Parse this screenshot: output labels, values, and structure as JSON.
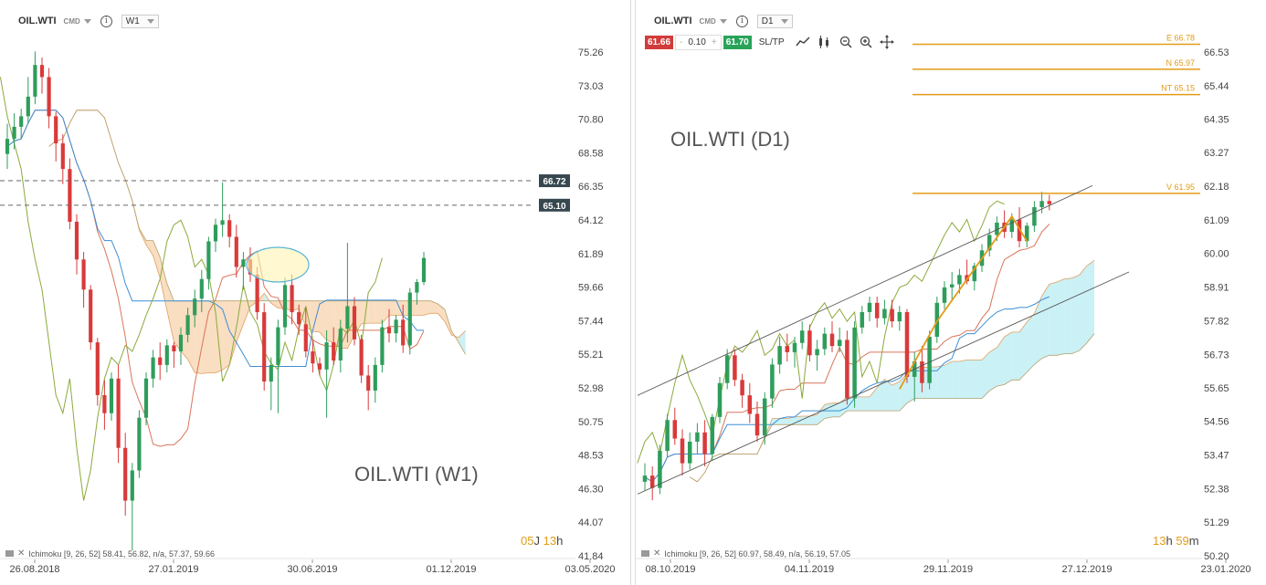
{
  "left": {
    "symbol": "OIL.WTI",
    "cmd": "CMD",
    "timeframe": "W1",
    "watermark": "OIL.WTI (W1)",
    "timer": {
      "a": "05",
      "b": "J",
      "c": "13",
      "d": "h"
    },
    "indicator": "Ichimoku [9, 26, 52] 58.41, 56.82, n/a, 57.37, 59.66",
    "levels": [
      {
        "label": "66.72",
        "value": 66.72
      },
      {
        "label": "65.10",
        "value": 65.1
      }
    ]
  },
  "right": {
    "symbol": "OIL.WTI",
    "cmd": "CMD",
    "timeframe": "D1",
    "watermark": "OIL.WTI (D1)",
    "sell_price": "61.66",
    "volume": "0.10",
    "minus": "-",
    "plus": "+",
    "buy_price": "61.70",
    "sltp": "SL/TP",
    "timer": {
      "a": "13",
      "b": "h",
      "c": "59",
      "d": "m"
    },
    "indicator": "Ichimoku [9, 26, 52] 60.97, 58.49, n/a, 56.19, 57.05",
    "fib_levels": [
      {
        "label": "E 66.78",
        "value": 66.78
      },
      {
        "label": "N 65.97",
        "value": 65.97
      },
      {
        "label": "NT 65.15",
        "value": 65.15
      },
      {
        "label": "V 61.95",
        "value": 61.95
      }
    ]
  },
  "chart_data": [
    {
      "type": "candlestick",
      "title": "OIL.WTI (W1)",
      "y_ticks": [
        "75.26",
        "73.03",
        "70.80",
        "68.58",
        "66.35",
        "64.12",
        "61.89",
        "59.66",
        "57.44",
        "55.21",
        "52.98",
        "50.75",
        "48.53",
        "46.30",
        "44.07",
        "41.84"
      ],
      "x_ticks": [
        "26.08.2018",
        "27.01.2019",
        "30.06.2019",
        "01.12.2019",
        "03.05.2020"
      ],
      "ylim": [
        41.84,
        75.26
      ],
      "candles": [
        [
          68.5,
          70.5,
          67.5,
          69.5
        ],
        [
          69.5,
          71.2,
          68.8,
          70.3
        ],
        [
          70.3,
          71.5,
          69.5,
          71.0
        ],
        [
          71.0,
          73.6,
          70.5,
          72.3
        ],
        [
          72.3,
          75.3,
          71.8,
          74.4
        ],
        [
          74.4,
          74.9,
          72.5,
          73.6
        ],
        [
          73.6,
          74.2,
          70.2,
          71.0
        ],
        [
          71.0,
          71.3,
          68.0,
          69.2
        ],
        [
          69.2,
          69.8,
          66.5,
          67.5
        ],
        [
          67.5,
          68.2,
          63.5,
          64.0
        ],
        [
          64.0,
          64.5,
          60.5,
          61.5
        ],
        [
          61.5,
          62.0,
          58.3,
          59.5
        ],
        [
          59.5,
          59.8,
          55.5,
          56.0
        ],
        [
          56.0,
          56.3,
          51.8,
          52.5
        ],
        [
          52.5,
          53.5,
          50.2,
          51.3
        ],
        [
          51.3,
          54.0,
          50.8,
          53.6
        ],
        [
          53.6,
          54.5,
          48.0,
          49.0
        ],
        [
          49.0,
          50.0,
          44.5,
          45.5
        ],
        [
          45.5,
          48.0,
          42.2,
          47.5
        ],
        [
          47.5,
          51.5,
          47.0,
          51.0
        ],
        [
          51.0,
          54.0,
          50.5,
          53.6
        ],
        [
          53.6,
          55.5,
          53.0,
          55.0
        ],
        [
          55.0,
          56.0,
          53.5,
          54.5
        ],
        [
          54.5,
          56.2,
          54.0,
          55.8
        ],
        [
          55.8,
          56.0,
          54.3,
          55.4
        ],
        [
          55.4,
          57.0,
          54.5,
          56.5
        ],
        [
          56.5,
          58.3,
          56.0,
          57.8
        ],
        [
          57.8,
          59.5,
          57.0,
          58.9
        ],
        [
          58.9,
          60.8,
          58.0,
          60.2
        ],
        [
          60.2,
          63.0,
          59.5,
          62.7
        ],
        [
          62.7,
          64.2,
          62.0,
          63.8
        ],
        [
          63.8,
          66.6,
          63.0,
          64.1
        ],
        [
          64.1,
          64.5,
          62.3,
          63.0
        ],
        [
          63.0,
          63.8,
          60.3,
          61.0
        ],
        [
          61.0,
          62.0,
          59.5,
          61.5
        ],
        [
          61.5,
          62.3,
          60.0,
          60.5
        ],
        [
          60.5,
          61.0,
          57.5,
          58.0
        ],
        [
          58.0,
          58.6,
          52.8,
          53.4
        ],
        [
          53.4,
          55.0,
          51.5,
          54.5
        ],
        [
          54.5,
          57.5,
          51.3,
          57.0
        ],
        [
          57.0,
          60.3,
          56.5,
          59.8
        ],
        [
          59.8,
          60.5,
          57.2,
          58.0
        ],
        [
          58.0,
          58.5,
          56.5,
          57.2
        ],
        [
          57.2,
          58.3,
          55.0,
          55.4
        ],
        [
          55.4,
          56.2,
          54.0,
          54.6
        ],
        [
          54.6,
          55.0,
          53.8,
          54.2
        ],
        [
          54.2,
          56.8,
          51.0,
          56.0
        ],
        [
          56.0,
          57.0,
          54.5,
          54.8
        ],
        [
          54.8,
          57.5,
          54.0,
          56.9
        ],
        [
          56.9,
          62.6,
          56.0,
          58.4
        ],
        [
          58.4,
          59.0,
          55.8,
          56.2
        ],
        [
          56.2,
          56.5,
          53.3,
          53.8
        ],
        [
          53.8,
          54.5,
          51.5,
          52.8
        ],
        [
          52.8,
          55.0,
          52.0,
          54.5
        ],
        [
          54.5,
          57.5,
          54.0,
          57.0
        ],
        [
          57.0,
          58.2,
          56.0,
          56.6
        ],
        [
          56.6,
          57.8,
          56.0,
          57.5
        ],
        [
          57.5,
          58.5,
          55.3,
          55.8
        ],
        [
          55.8,
          59.6,
          55.2,
          59.3
        ],
        [
          59.3,
          60.2,
          58.5,
          60.0
        ],
        [
          60.0,
          62.0,
          59.8,
          61.6
        ]
      ]
    },
    {
      "type": "candlestick",
      "title": "OIL.WTI (D1)",
      "y_ticks": [
        "66.53",
        "65.44",
        "64.35",
        "63.27",
        "62.18",
        "61.09",
        "60.00",
        "58.91",
        "57.82",
        "56.73",
        "55.65",
        "54.56",
        "53.47",
        "52.38",
        "51.29",
        "50.20"
      ],
      "x_ticks": [
        "08.10.2019",
        "04.11.2019",
        "29.11.2019",
        "27.12.2019",
        "23.01.2020"
      ],
      "ylim": [
        50.2,
        66.53
      ],
      "candles": [
        [
          52.6,
          53.2,
          52.3,
          52.8
        ],
        [
          52.8,
          53.1,
          52.0,
          52.4
        ],
        [
          52.4,
          53.8,
          52.2,
          53.6
        ],
        [
          53.6,
          54.8,
          53.4,
          54.6
        ],
        [
          54.6,
          55.0,
          53.8,
          54.0
        ],
        [
          54.0,
          54.3,
          52.8,
          53.2
        ],
        [
          53.2,
          54.2,
          53.0,
          53.9
        ],
        [
          53.9,
          54.5,
          53.5,
          54.2
        ],
        [
          54.2,
          54.6,
          53.1,
          53.5
        ],
        [
          53.5,
          54.8,
          53.3,
          54.7
        ],
        [
          54.7,
          56.0,
          54.5,
          55.8
        ],
        [
          55.8,
          56.9,
          55.6,
          56.7
        ],
        [
          56.7,
          56.9,
          55.7,
          55.9
        ],
        [
          55.9,
          56.1,
          55.0,
          55.4
        ],
        [
          55.4,
          55.8,
          54.5,
          54.8
        ],
        [
          54.8,
          55.2,
          53.9,
          54.1
        ],
        [
          54.1,
          55.5,
          53.8,
          55.3
        ],
        [
          55.3,
          56.6,
          55.0,
          56.4
        ],
        [
          56.4,
          57.3,
          56.1,
          57.0
        ],
        [
          57.0,
          57.4,
          56.5,
          56.8
        ],
        [
          56.8,
          57.3,
          56.3,
          57.1
        ],
        [
          57.1,
          57.8,
          56.9,
          57.5
        ],
        [
          57.5,
          57.7,
          56.5,
          56.7
        ],
        [
          56.7,
          57.2,
          56.2,
          56.9
        ],
        [
          56.9,
          57.6,
          56.7,
          57.4
        ],
        [
          57.4,
          57.8,
          56.8,
          57.0
        ],
        [
          57.0,
          57.6,
          56.8,
          57.2
        ],
        [
          57.2,
          57.5,
          55.1,
          55.3
        ],
        [
          55.3,
          57.8,
          55.0,
          57.6
        ],
        [
          57.6,
          58.3,
          57.4,
          58.1
        ],
        [
          58.1,
          58.6,
          57.8,
          58.4
        ],
        [
          58.4,
          58.6,
          57.6,
          57.9
        ],
        [
          57.9,
          58.5,
          57.7,
          58.2
        ],
        [
          58.2,
          58.5,
          57.6,
          57.8
        ],
        [
          57.8,
          58.3,
          57.5,
          58.1
        ],
        [
          58.1,
          58.2,
          55.8,
          56.0
        ],
        [
          56.0,
          56.8,
          55.2,
          56.5
        ],
        [
          56.5,
          57.0,
          55.5,
          55.8
        ],
        [
          55.8,
          57.5,
          55.6,
          57.3
        ],
        [
          57.3,
          58.6,
          57.1,
          58.4
        ],
        [
          58.4,
          59.1,
          58.2,
          58.9
        ],
        [
          58.9,
          59.4,
          58.5,
          59.0
        ],
        [
          59.0,
          59.5,
          58.7,
          59.3
        ],
        [
          59.3,
          59.8,
          59.0,
          59.1
        ],
        [
          59.1,
          59.7,
          58.8,
          59.6
        ],
        [
          59.6,
          60.3,
          59.4,
          60.1
        ],
        [
          60.1,
          60.8,
          59.9,
          60.6
        ],
        [
          60.6,
          61.2,
          60.4,
          61.0
        ],
        [
          61.0,
          61.4,
          60.5,
          60.7
        ],
        [
          60.7,
          61.3,
          60.5,
          61.1
        ],
        [
          61.1,
          61.5,
          60.2,
          60.4
        ],
        [
          60.4,
          61.0,
          60.2,
          60.9
        ],
        [
          60.9,
          61.7,
          60.7,
          61.5
        ],
        [
          61.5,
          62.0,
          61.3,
          61.7
        ],
        [
          61.7,
          61.9,
          61.4,
          61.6
        ]
      ]
    }
  ]
}
